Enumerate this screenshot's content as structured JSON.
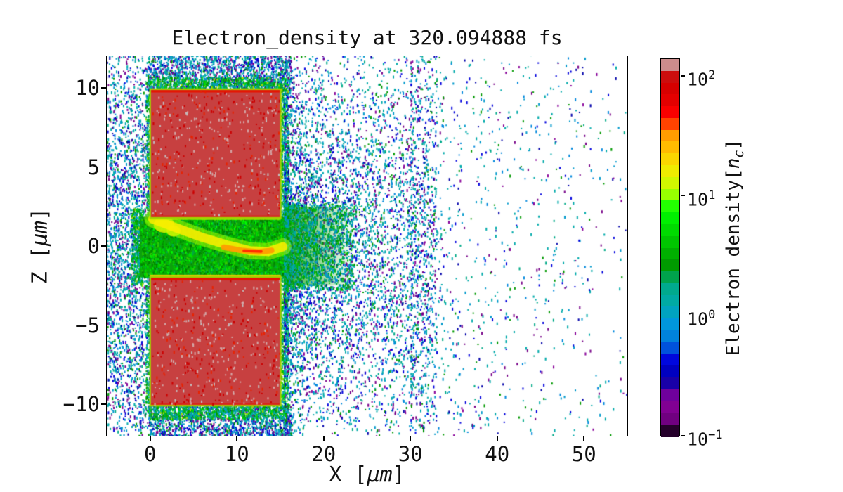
{
  "figure": {
    "background": "#ffffff"
  },
  "chart_data": {
    "type": "heatmap",
    "title": "Electron_density at 320.094888 fs",
    "xlabel": {
      "pre": "X [",
      "italic": "μm",
      "post": "]"
    },
    "ylabel": {
      "pre": "Z [",
      "italic": "μm",
      "post": "]"
    },
    "x_range": [
      -5,
      55
    ],
    "z_range": [
      -12,
      12
    ],
    "grid": false,
    "x_ticks": [
      {
        "v": 0,
        "label": "0"
      },
      {
        "v": 10,
        "label": "10"
      },
      {
        "v": 20,
        "label": "20"
      },
      {
        "v": 30,
        "label": "30"
      },
      {
        "v": 40,
        "label": "40"
      },
      {
        "v": 50,
        "label": "50"
      }
    ],
    "z_ticks": [
      {
        "v": 10,
        "label": "10"
      },
      {
        "v": 5,
        "label": "5"
      },
      {
        "v": 0,
        "label": "0"
      },
      {
        "v": -5,
        "label": "−5"
      },
      {
        "v": -10,
        "label": "−10"
      }
    ],
    "colorbar": {
      "label": {
        "pre": "Electron_density[",
        "italic_var": "n",
        "sub": "c",
        "post": "]"
      },
      "scale": "log",
      "vmin": 0.1,
      "vmax": 140,
      "tick_base": "10",
      "ticks": [
        {
          "value": 100,
          "exp": "2"
        },
        {
          "value": 10,
          "exp": "1"
        },
        {
          "value": 1,
          "exp": "0"
        },
        {
          "value": 0.1,
          "exp": "−1"
        }
      ],
      "n_bands": 32,
      "colormap": "nipy_spectral",
      "colormap_stops": [
        [
          0.0,
          "#000000"
        ],
        [
          0.05,
          "#770088"
        ],
        [
          0.1,
          "#880099"
        ],
        [
          0.15,
          "#0000aa"
        ],
        [
          0.2,
          "#0000dd"
        ],
        [
          0.25,
          "#0077dd"
        ],
        [
          0.3,
          "#0099dd"
        ],
        [
          0.35,
          "#00aaaa"
        ],
        [
          0.4,
          "#00aa88"
        ],
        [
          0.45,
          "#009900"
        ],
        [
          0.5,
          "#00bb00"
        ],
        [
          0.55,
          "#00dd00"
        ],
        [
          0.6,
          "#00ff00"
        ],
        [
          0.65,
          "#bbff00"
        ],
        [
          0.7,
          "#eeee00"
        ],
        [
          0.75,
          "#ffcc00"
        ],
        [
          0.8,
          "#ff9900"
        ],
        [
          0.85,
          "#ff0000"
        ],
        [
          0.9,
          "#dd0000"
        ],
        [
          0.95,
          "#cc0000"
        ],
        [
          1.0,
          "#cccccc"
        ]
      ]
    },
    "features": {
      "target_blocks": [
        {
          "name": "top-target",
          "x": [
            0,
            15.05
          ],
          "z": [
            1.78,
            9.92
          ],
          "fill": "#c74040",
          "border": "#a0d400",
          "top_edge_line": "#e51600"
        },
        {
          "name": "bottom-target",
          "x": [
            0,
            15.05
          ],
          "z": [
            -10.1,
            -1.95
          ],
          "fill": "#c74040",
          "border": "#a0d400",
          "top_edge_line": "#e51600"
        }
      ],
      "plasma_channel": {
        "x": [
          -1.2,
          15.5
        ],
        "z": [
          -1.95,
          1.85
        ],
        "fill": "#0da00d"
      },
      "channel_fade": {
        "x": [
          15.4,
          23.5
        ],
        "z": [
          -2.5,
          2.5
        ],
        "fill": "#0da00d"
      },
      "jet_arc": {
        "points": [
          [
            0.3,
            1.7
          ],
          [
            3,
            1.15
          ],
          [
            6,
            0.55
          ],
          [
            9,
            0.05
          ],
          [
            11.5,
            -0.3
          ],
          [
            13.6,
            -0.35
          ],
          [
            15.3,
            -0.05
          ]
        ],
        "hot_points": [
          [
            8.5,
            -0.08
          ],
          [
            10.5,
            -0.28
          ],
          [
            12.5,
            -0.38
          ],
          [
            14.0,
            -0.28
          ]
        ],
        "core_points": [
          [
            10.8,
            -0.3
          ],
          [
            12.8,
            -0.34
          ]
        ],
        "colors": {
          "outer": "#aaff00",
          "mid": "#ffee00",
          "hot": "#ff9900",
          "core": "#ff2a00"
        },
        "blobs": [
          {
            "x": 1.6,
            "z": 1.35,
            "rx": 1.2,
            "rz": 0.5,
            "color": "#ffe600"
          },
          {
            "x": 2.7,
            "z": 0.95,
            "rx": 0.8,
            "rz": 0.35,
            "color": "#ffee00"
          }
        ],
        "edge_lines": [
          {
            "x": [
              0,
              15.05
            ],
            "z": -1.95,
            "color": "#ffcc00"
          },
          {
            "x": [
              0,
              15.05
            ],
            "z": 1.78,
            "color": "#bbee00"
          }
        ]
      }
    },
    "scatter_field": {
      "seed": 42,
      "dot_size": {
        "w": 2,
        "hmin": 2,
        "hmax": 4
      },
      "palettes": {
        "cold": [
          [
            "#00aaaa",
            26
          ],
          [
            "#0099cc",
            13
          ],
          [
            "#0088dd",
            10
          ],
          [
            "#0000dd",
            13
          ],
          [
            "#0000aa",
            7
          ],
          [
            "#770088",
            11
          ],
          [
            "#880099",
            5
          ],
          [
            "#009900",
            9
          ],
          [
            "#00aa88",
            6
          ]
        ],
        "fringe": [
          [
            "#00aa44",
            20
          ],
          [
            "#009900",
            20
          ],
          [
            "#00bb00",
            15
          ],
          [
            "#00aaaa",
            20
          ],
          [
            "#0099cc",
            10
          ],
          [
            "#00dd00",
            10
          ],
          [
            "#aadd00",
            5
          ]
        ],
        "green": [
          [
            "#00bb00",
            26
          ],
          [
            "#00dd00",
            18
          ],
          [
            "#008800",
            20
          ],
          [
            "#00aa44",
            12
          ],
          [
            "#33cc00",
            10
          ],
          [
            "#007700",
            8
          ],
          [
            "#00ff00",
            6
          ]
        ],
        "greenfade": [
          [
            "#00aa44",
            20
          ],
          [
            "#009900",
            22
          ],
          [
            "#00bb00",
            14
          ],
          [
            "#00aaaa",
            24
          ],
          [
            "#0099cc",
            12
          ],
          [
            "#0088dd",
            8
          ]
        ],
        "blockdots": [
          [
            "#d4a8a8",
            40
          ],
          [
            "#c4bcbc",
            12
          ],
          [
            "#cc0000",
            33
          ],
          [
            "#e82200",
            15
          ]
        ]
      },
      "regions": [
        {
          "name": "left-halo",
          "layer": "base",
          "x": [
            -5.2,
            0.1
          ],
          "z": [
            -12.2,
            12.2
          ],
          "count": 2600,
          "palette": "cold",
          "zsig": 8
        },
        {
          "name": "left-channel-fringe",
          "layer": "base",
          "x": [
            -2.2,
            -0.9
          ],
          "z": [
            -2.4,
            2.4
          ],
          "count": 420,
          "palette": "fringe"
        },
        {
          "name": "above-top-block",
          "layer": "base",
          "x": [
            -0.3,
            16.2
          ],
          "z": [
            9.8,
            12.2
          ],
          "count": 1600,
          "palette": "cold"
        },
        {
          "name": "top-block-fringe",
          "layer": "base",
          "x": [
            -0.2,
            15.6
          ],
          "z": [
            9.85,
            10.7
          ],
          "count": 800,
          "palette": "fringe"
        },
        {
          "name": "below-bottom-block",
          "layer": "base",
          "x": [
            -0.3,
            16.2
          ],
          "z": [
            -12.2,
            -10.0
          ],
          "count": 1600,
          "palette": "cold"
        },
        {
          "name": "bottom-block-fringe",
          "layer": "base",
          "x": [
            -0.2,
            15.6
          ],
          "z": [
            -10.9,
            -10.05
          ],
          "count": 800,
          "palette": "fringe"
        },
        {
          "name": "block-left-edge-fringe",
          "layer": "base",
          "x": [
            -0.55,
            0.12
          ],
          "z": [
            -10.5,
            10.5
          ],
          "count": 500,
          "palette": "fringe"
        },
        {
          "name": "top-block-right-fringe",
          "layer": "base",
          "x": [
            14.9,
            15.9
          ],
          "z": [
            1.8,
            10.3
          ],
          "count": 450,
          "palette": "fringe"
        },
        {
          "name": "bottom-block-right-fringe",
          "layer": "base",
          "x": [
            14.9,
            15.9
          ],
          "z": [
            -10.3,
            -1.9
          ],
          "count": 450,
          "palette": "fringe"
        },
        {
          "name": "right-plume",
          "layer": "base",
          "x": [
            15.4,
            33
          ],
          "z": [
            -12.1,
            12.1
          ],
          "count": 6000,
          "palette": "cold",
          "xpow": 1.7,
          "zsig": 6.5
        },
        {
          "name": "far-right-sparse",
          "layer": "base",
          "x": [
            30,
            55.2
          ],
          "z": [
            -12.1,
            12.1
          ],
          "count": 1150,
          "palette": "cold",
          "xpow": 2.0
        },
        {
          "name": "channel-noise",
          "layer": "channel",
          "x": [
            -1.1,
            15.5
          ],
          "z": [
            -1.95,
            1.85
          ],
          "count": 3200,
          "palette": "green"
        },
        {
          "name": "channel-fade-speckle",
          "layer": "channel",
          "x": [
            15.4,
            23.5
          ],
          "z": [
            -2.7,
            2.7
          ],
          "count": 1700,
          "palette": "greenfade",
          "xpow": 1.9
        },
        {
          "name": "top-block-dots",
          "layer": "blocks",
          "x": [
            0.15,
            14.9
          ],
          "z": [
            2.0,
            9.8
          ],
          "count": 480,
          "palette": "blockdots"
        },
        {
          "name": "bottom-block-dots",
          "layer": "blocks",
          "x": [
            0.15,
            14.9
          ],
          "z": [
            -9.95,
            -2.1
          ],
          "count": 480,
          "palette": "blockdots"
        }
      ]
    }
  }
}
